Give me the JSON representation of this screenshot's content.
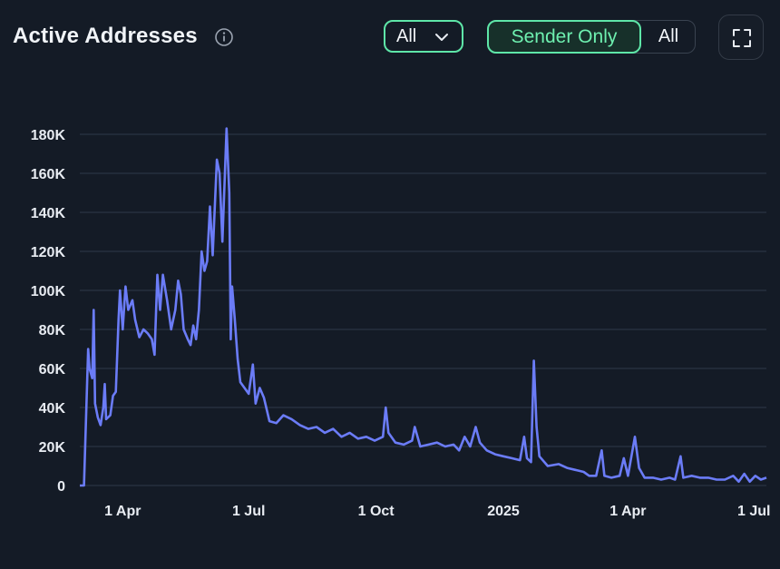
{
  "header": {
    "title": "Active Addresses",
    "info_icon": "info-circle-icon",
    "filter_dropdown": {
      "selected": "All",
      "icon": "chevron-down-icon"
    },
    "toggle": {
      "active_label": "Sender Only",
      "other_label": "All"
    },
    "fullscreen_icon": "fullscreen-icon"
  },
  "colors": {
    "background": "#141b26",
    "line": "#6b7cf7",
    "accent": "#5ee6a8",
    "grid": "#2e3a4a"
  },
  "chart_data": {
    "type": "line",
    "title": "",
    "xlabel": "",
    "ylabel": "",
    "x_ticks": [
      "1 Apr",
      "1 Jul",
      "1 Oct",
      "2025",
      "1 Apr",
      "1 Jul"
    ],
    "y_ticks": [
      "0",
      "20K",
      "40K",
      "60K",
      "80K",
      "100K",
      "120K",
      "140K",
      "160K",
      "180K"
    ],
    "ylim": [
      0,
      180000
    ],
    "xlim": [
      "2024-03-01",
      "2025-07-10"
    ],
    "grid": true,
    "series": [
      {
        "color": "#6b7cf7",
        "points": [
          [
            "2024-03-01",
            0
          ],
          [
            "2024-03-04",
            0
          ],
          [
            "2024-03-07",
            70000
          ],
          [
            "2024-03-08",
            60000
          ],
          [
            "2024-03-10",
            55000
          ],
          [
            "2024-03-11",
            90000
          ],
          [
            "2024-03-12",
            42000
          ],
          [
            "2024-03-14",
            35000
          ],
          [
            "2024-03-16",
            31000
          ],
          [
            "2024-03-18",
            40000
          ],
          [
            "2024-03-19",
            52000
          ],
          [
            "2024-03-20",
            34000
          ],
          [
            "2024-03-23",
            36000
          ],
          [
            "2024-03-25",
            46000
          ],
          [
            "2024-03-27",
            48000
          ],
          [
            "2024-03-29",
            85000
          ],
          [
            "2024-03-30",
            100000
          ],
          [
            "2024-04-01",
            80000
          ],
          [
            "2024-04-03",
            102000
          ],
          [
            "2024-04-05",
            90000
          ],
          [
            "2024-04-08",
            95000
          ],
          [
            "2024-04-10",
            85000
          ],
          [
            "2024-04-13",
            76000
          ],
          [
            "2024-04-16",
            80000
          ],
          [
            "2024-04-19",
            78000
          ],
          [
            "2024-04-22",
            75000
          ],
          [
            "2024-04-24",
            67000
          ],
          [
            "2024-04-26",
            108000
          ],
          [
            "2024-04-28",
            90000
          ],
          [
            "2024-04-30",
            108000
          ],
          [
            "2024-05-03",
            95000
          ],
          [
            "2024-05-06",
            80000
          ],
          [
            "2024-05-09",
            90000
          ],
          [
            "2024-05-11",
            105000
          ],
          [
            "2024-05-13",
            98000
          ],
          [
            "2024-05-15",
            80000
          ],
          [
            "2024-05-18",
            75000
          ],
          [
            "2024-05-20",
            72000
          ],
          [
            "2024-05-22",
            82000
          ],
          [
            "2024-05-24",
            75000
          ],
          [
            "2024-05-26",
            90000
          ],
          [
            "2024-05-28",
            120000
          ],
          [
            "2024-05-30",
            110000
          ],
          [
            "2024-06-01",
            115000
          ],
          [
            "2024-06-03",
            143000
          ],
          [
            "2024-06-05",
            118000
          ],
          [
            "2024-06-08",
            167000
          ],
          [
            "2024-06-10",
            160000
          ],
          [
            "2024-06-12",
            125000
          ],
          [
            "2024-06-15",
            183000
          ],
          [
            "2024-06-17",
            150000
          ],
          [
            "2024-06-18",
            75000
          ],
          [
            "2024-06-19",
            102000
          ],
          [
            "2024-06-21",
            85000
          ],
          [
            "2024-06-23",
            65000
          ],
          [
            "2024-06-25",
            53000
          ],
          [
            "2024-06-28",
            50000
          ],
          [
            "2024-07-01",
            47000
          ],
          [
            "2024-07-04",
            62000
          ],
          [
            "2024-07-06",
            42000
          ],
          [
            "2024-07-09",
            50000
          ],
          [
            "2024-07-12",
            45000
          ],
          [
            "2024-07-16",
            33000
          ],
          [
            "2024-07-21",
            32000
          ],
          [
            "2024-07-26",
            36000
          ],
          [
            "2024-08-01",
            34000
          ],
          [
            "2024-08-07",
            31000
          ],
          [
            "2024-08-13",
            29000
          ],
          [
            "2024-08-19",
            30000
          ],
          [
            "2024-08-25",
            27000
          ],
          [
            "2024-08-31",
            29000
          ],
          [
            "2024-09-06",
            25000
          ],
          [
            "2024-09-12",
            27000
          ],
          [
            "2024-09-18",
            24000
          ],
          [
            "2024-09-24",
            25000
          ],
          [
            "2024-09-30",
            23000
          ],
          [
            "2024-10-06",
            25000
          ],
          [
            "2024-10-08",
            40000
          ],
          [
            "2024-10-10",
            27000
          ],
          [
            "2024-10-15",
            22000
          ],
          [
            "2024-10-21",
            21000
          ],
          [
            "2024-10-27",
            23000
          ],
          [
            "2024-10-29",
            30000
          ],
          [
            "2024-11-02",
            20000
          ],
          [
            "2024-11-08",
            21000
          ],
          [
            "2024-11-14",
            22000
          ],
          [
            "2024-11-20",
            20000
          ],
          [
            "2024-11-26",
            21000
          ],
          [
            "2024-11-30",
            18000
          ],
          [
            "2024-12-04",
            25000
          ],
          [
            "2024-12-08",
            20000
          ],
          [
            "2024-12-12",
            30000
          ],
          [
            "2024-12-15",
            22000
          ],
          [
            "2024-12-20",
            18000
          ],
          [
            "2024-12-26",
            16000
          ],
          [
            "2025-01-01",
            15000
          ],
          [
            "2025-01-07",
            14000
          ],
          [
            "2025-01-13",
            13000
          ],
          [
            "2025-01-16",
            25000
          ],
          [
            "2025-01-18",
            14000
          ],
          [
            "2025-01-21",
            12000
          ],
          [
            "2025-01-23",
            64000
          ],
          [
            "2025-01-25",
            30000
          ],
          [
            "2025-01-27",
            15000
          ],
          [
            "2025-02-02",
            10000
          ],
          [
            "2025-02-10",
            11000
          ],
          [
            "2025-02-16",
            9000
          ],
          [
            "2025-02-22",
            8000
          ],
          [
            "2025-02-28",
            7000
          ],
          [
            "2025-03-04",
            5000
          ],
          [
            "2025-03-09",
            5000
          ],
          [
            "2025-03-13",
            18000
          ],
          [
            "2025-03-15",
            5000
          ],
          [
            "2025-03-20",
            4000
          ],
          [
            "2025-03-26",
            5000
          ],
          [
            "2025-03-29",
            14000
          ],
          [
            "2025-04-01",
            5000
          ],
          [
            "2025-04-06",
            25000
          ],
          [
            "2025-04-09",
            9000
          ],
          [
            "2025-04-13",
            4000
          ],
          [
            "2025-04-19",
            4000
          ],
          [
            "2025-04-25",
            3000
          ],
          [
            "2025-05-01",
            4000
          ],
          [
            "2025-05-05",
            3000
          ],
          [
            "2025-05-09",
            15000
          ],
          [
            "2025-05-11",
            4000
          ],
          [
            "2025-05-17",
            5000
          ],
          [
            "2025-05-23",
            4000
          ],
          [
            "2025-05-29",
            4000
          ],
          [
            "2025-06-04",
            3000
          ],
          [
            "2025-06-10",
            3000
          ],
          [
            "2025-06-16",
            5000
          ],
          [
            "2025-06-20",
            2000
          ],
          [
            "2025-06-24",
            6000
          ],
          [
            "2025-06-28",
            2000
          ],
          [
            "2025-07-02",
            5000
          ],
          [
            "2025-07-06",
            3000
          ],
          [
            "2025-07-10",
            4000
          ]
        ]
      }
    ]
  }
}
